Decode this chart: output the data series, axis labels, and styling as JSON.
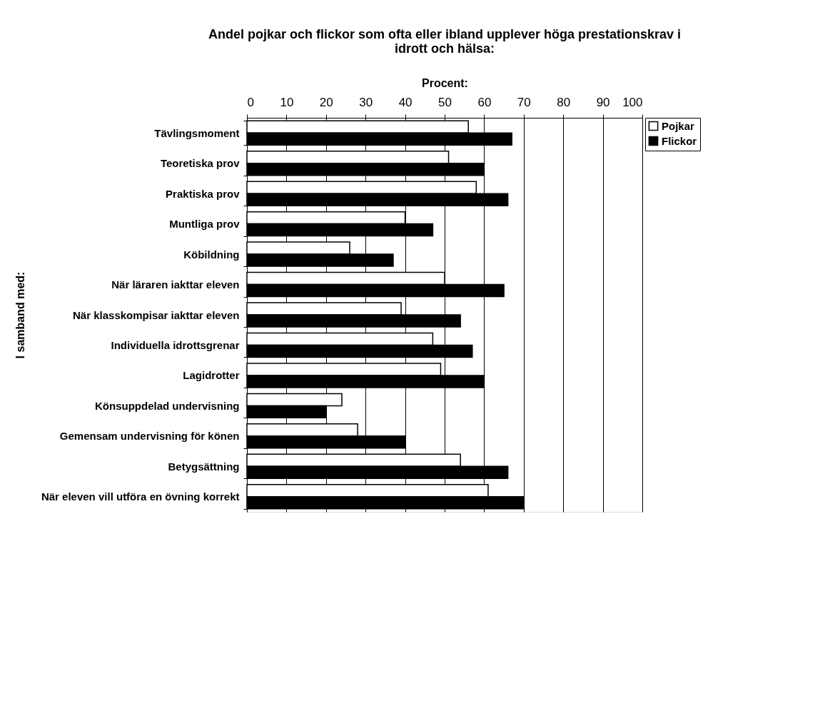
{
  "chart_data": {
    "type": "bar",
    "orientation": "horizontal",
    "title": "Andel pojkar och flickor som ofta eller ibland upplever höga prestationskrav i idrott och hälsa:",
    "xlabel": "Procent:",
    "ylabel": "I samband med:",
    "categories": [
      "Tävlingsmoment",
      "Teoretiska prov",
      "Praktiska prov",
      "Muntliga prov",
      "Köbildning",
      "När läraren iakttar eleven",
      "När klasskompisar iakttar eleven",
      "Individuella idrottsgrenar",
      "Lagidrotter",
      "Könsuppdelad undervisning",
      "Gemensam undervisning för könen",
      "Betygsättning",
      "När eleven vill utföra en övning korrekt"
    ],
    "series": [
      {
        "name": "Pojkar",
        "color": "#ffffff",
        "values": [
          56,
          51,
          58,
          40,
          26,
          50,
          39,
          47,
          49,
          24,
          28,
          54,
          61
        ]
      },
      {
        "name": "Flickor",
        "color": "#000000",
        "values": [
          67,
          60,
          66,
          47,
          37,
          65,
          54,
          57,
          60,
          20,
          40,
          66,
          70
        ]
      }
    ],
    "xlim": [
      0,
      100
    ],
    "xticks": [
      0,
      10,
      20,
      30,
      40,
      50,
      60,
      70,
      80,
      90,
      100
    ],
    "grid": "x",
    "legend": "right"
  }
}
